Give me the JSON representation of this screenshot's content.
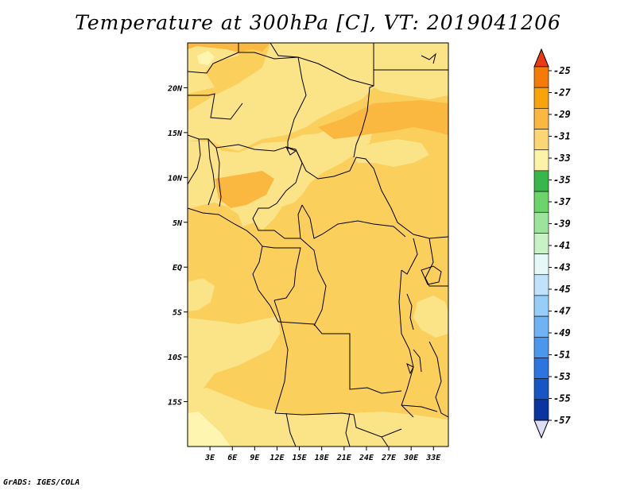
{
  "title": "Temperature at 300hPa [C], VT: 2019041206",
  "footer": "GrADS: IGES/COLA",
  "map": {
    "type": "filled-contour-map",
    "lon_range": [
      0,
      35
    ],
    "lat_range": [
      -20,
      25
    ],
    "lon_ticks": [
      "3E",
      "6E",
      "9E",
      "12E",
      "15E",
      "18E",
      "21E",
      "24E",
      "27E",
      "30E",
      "33E"
    ],
    "lat_ticks": [
      "20N",
      "15N",
      "10N",
      "5N",
      "EQ",
      "5S",
      "10S",
      "15S"
    ],
    "fill_colors": {
      "band_33_31": "#fbe387",
      "band_31_29": "#fbb840",
      "band_35_33": "#fdf5b0",
      "background": "#fbcf5c"
    },
    "boundary_color": "#000000"
  },
  "colorbar": {
    "labels": [
      "-25",
      "-27",
      "-29",
      "-31",
      "-33",
      "-35",
      "-37",
      "-39",
      "-41",
      "-43",
      "-45",
      "-47",
      "-49",
      "-51",
      "-53",
      "-55",
      "-57"
    ],
    "colors": [
      "#ee3a13",
      "#f57a08",
      "#f8a20c",
      "#fbb840",
      "#fbd774",
      "#fdf3a6",
      "#37b74a",
      "#6bd56b",
      "#9de39b",
      "#c9f1c6",
      "#e6f8f8",
      "#bfe3fa",
      "#96cef7",
      "#6eb3f3",
      "#4b97ee",
      "#2a75df",
      "#1656c4",
      "#0b34a0",
      "#0b1a6b"
    ],
    "top_arrow_color": "#ee3a13",
    "bottom_arrow_color": "#ddddf4"
  }
}
